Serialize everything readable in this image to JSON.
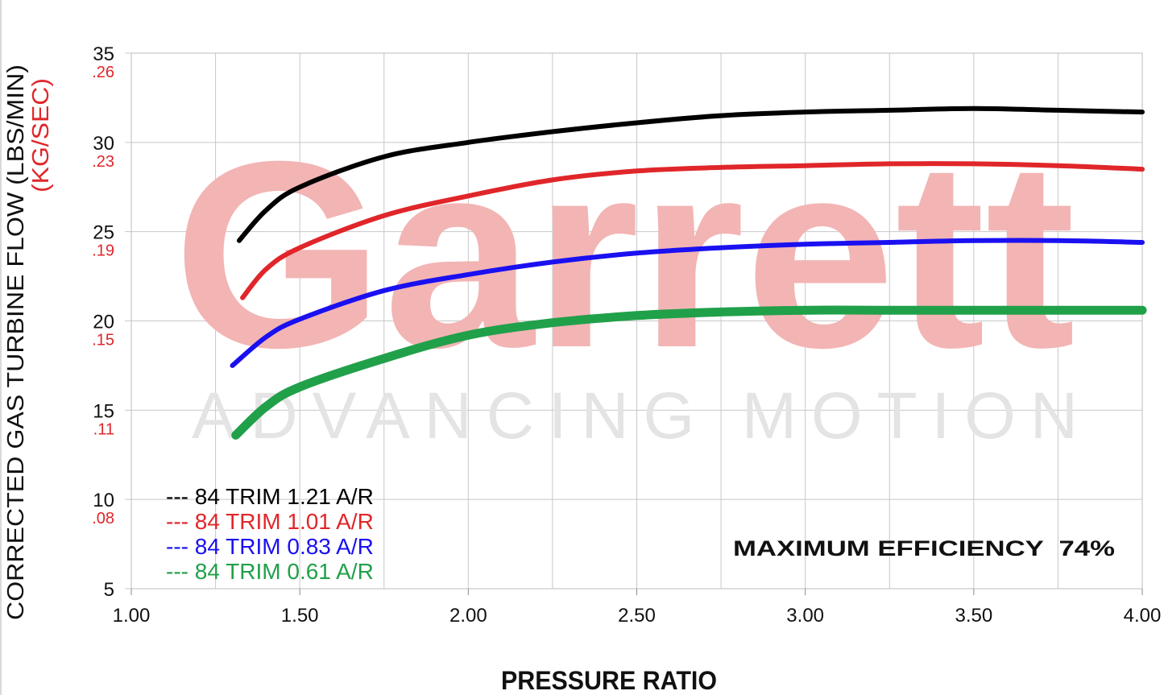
{
  "brand": {
    "logo_text": "Garrett",
    "tagline": "ADVANCING MOTION",
    "logo_color": "#f3b4b4",
    "tagline_color": "#e4e4e4"
  },
  "chart_data": {
    "type": "line",
    "xlabel": "PRESSURE RATIO",
    "ylabel": "CORRECTED GAS TURBINE FLOW (LBS/MIN)",
    "ylabel_secondary": "(KG/SEC)",
    "xlim": [
      1.0,
      4.0
    ],
    "ylim": [
      5,
      35
    ],
    "x_ticks": [
      {
        "value": 1.0,
        "label": "1.00"
      },
      {
        "value": 1.5,
        "label": "1.50"
      },
      {
        "value": 2.0,
        "label": "2.00"
      },
      {
        "value": 2.5,
        "label": "2.50"
      },
      {
        "value": 3.0,
        "label": "3.00"
      },
      {
        "value": 3.5,
        "label": "3.50"
      },
      {
        "value": 4.0,
        "label": "4.00"
      }
    ],
    "x_minor_grid_step": 0.25,
    "y_ticks": [
      {
        "value": 35,
        "label": "35",
        "secondary": ".26"
      },
      {
        "value": 30,
        "label": "30",
        "secondary": ".23"
      },
      {
        "value": 25,
        "label": "25",
        "secondary": ".19"
      },
      {
        "value": 20,
        "label": "20",
        "secondary": ".15"
      },
      {
        "value": 15,
        "label": "15",
        "secondary": ".11"
      },
      {
        "value": 10,
        "label": "10",
        "secondary": ".08"
      },
      {
        "value": 5,
        "label": "5",
        "secondary": ""
      }
    ],
    "grid": true,
    "legend_position": "bottom-left",
    "annotation": "MAXIMUM EFFICIENCY  74%",
    "series": [
      {
        "name": "84 TRIM 1.21 A/R",
        "color": "#000000",
        "points": [
          [
            1.32,
            24.5
          ],
          [
            1.4,
            26.2
          ],
          [
            1.5,
            27.5
          ],
          [
            1.75,
            29.2
          ],
          [
            2.0,
            30.0
          ],
          [
            2.25,
            30.6
          ],
          [
            2.5,
            31.1
          ],
          [
            2.75,
            31.5
          ],
          [
            3.0,
            31.7
          ],
          [
            3.25,
            31.8
          ],
          [
            3.5,
            31.9
          ],
          [
            3.75,
            31.8
          ],
          [
            4.0,
            31.7
          ]
        ]
      },
      {
        "name": "84 TRIM 1.01 A/R",
        "color": "#e0262a",
        "points": [
          [
            1.33,
            21.3
          ],
          [
            1.4,
            22.9
          ],
          [
            1.5,
            24.1
          ],
          [
            1.75,
            25.9
          ],
          [
            2.0,
            27.0
          ],
          [
            2.25,
            27.9
          ],
          [
            2.5,
            28.4
          ],
          [
            2.75,
            28.6
          ],
          [
            3.0,
            28.7
          ],
          [
            3.25,
            28.8
          ],
          [
            3.5,
            28.8
          ],
          [
            3.75,
            28.7
          ],
          [
            4.0,
            28.5
          ]
        ]
      },
      {
        "name": "84 TRIM 0.83 A/R",
        "color": "#1a10f0",
        "points": [
          [
            1.3,
            17.5
          ],
          [
            1.4,
            19.1
          ],
          [
            1.5,
            20.1
          ],
          [
            1.75,
            21.7
          ],
          [
            2.0,
            22.6
          ],
          [
            2.25,
            23.3
          ],
          [
            2.5,
            23.8
          ],
          [
            2.75,
            24.1
          ],
          [
            3.0,
            24.3
          ],
          [
            3.25,
            24.4
          ],
          [
            3.5,
            24.5
          ],
          [
            3.75,
            24.5
          ],
          [
            4.0,
            24.4
          ]
        ]
      },
      {
        "name": "84 TRIM 0.61 A/R",
        "color": "#21a04a",
        "points": [
          [
            1.31,
            13.6
          ],
          [
            1.4,
            15.2
          ],
          [
            1.5,
            16.3
          ],
          [
            1.75,
            17.9
          ],
          [
            2.0,
            19.2
          ],
          [
            2.25,
            19.9
          ],
          [
            2.5,
            20.3
          ],
          [
            2.75,
            20.5
          ],
          [
            3.0,
            20.6
          ],
          [
            3.25,
            20.6
          ],
          [
            3.5,
            20.6
          ],
          [
            3.75,
            20.6
          ],
          [
            4.0,
            20.6
          ]
        ]
      }
    ]
  }
}
